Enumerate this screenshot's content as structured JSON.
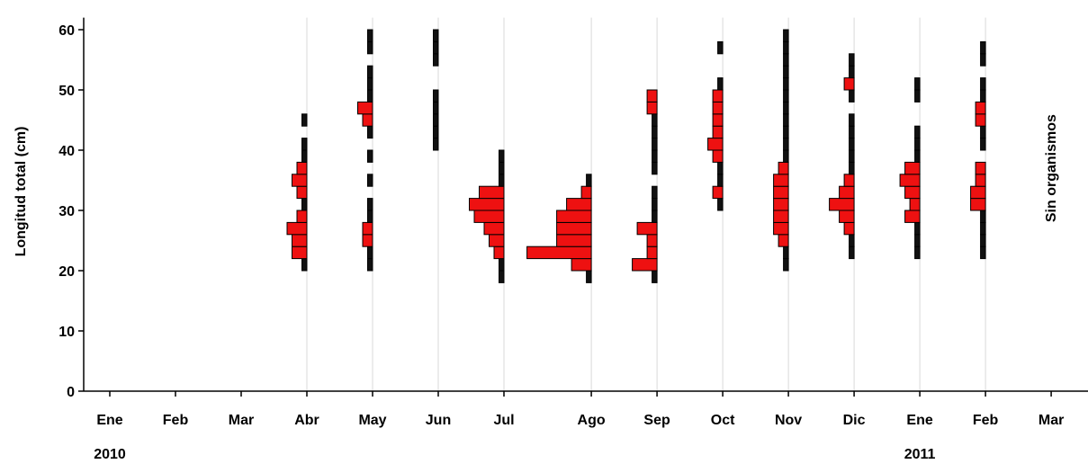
{
  "chart_data": {
    "type": "bar",
    "subtype": "monthly length-frequency histograms (horizontal bars)",
    "ylabel": "Longitud total (cm)",
    "ylim": [
      0,
      62
    ],
    "yticks": [
      0,
      10,
      20,
      30,
      40,
      50,
      60
    ],
    "bin_width_cm": 2,
    "colors": {
      "bar_fill": "#ee1111",
      "bar_stroke": "#000000",
      "gridline": "#d9d9d9"
    },
    "months": [
      {
        "label": "Ene",
        "x": 0
      },
      {
        "label": "Feb",
        "x": 1
      },
      {
        "label": "Mar",
        "x": 2
      },
      {
        "label": "Abr",
        "x": 3
      },
      {
        "label": "May",
        "x": 4
      },
      {
        "label": "Jun",
        "x": 5
      },
      {
        "label": "Jul",
        "x": 6
      },
      {
        "label": "Ago",
        "x": 7.33
      },
      {
        "label": "Sep",
        "x": 8.33
      },
      {
        "label": "Oct",
        "x": 9.33
      },
      {
        "label": "Nov",
        "x": 10.33
      },
      {
        "label": "Dic",
        "x": 11.33
      },
      {
        "label": "Ene",
        "x": 12.33
      },
      {
        "label": "Feb",
        "x": 13.33
      },
      {
        "label": "Mar",
        "x": 14.33
      }
    ],
    "years": [
      {
        "label": "2010",
        "x": 0
      },
      {
        "label": "2011",
        "x": 12.33
      }
    ],
    "annotation": {
      "text": "Sin organismos",
      "x": 14.33,
      "y": 37
    },
    "series": [
      {
        "month": "Abr",
        "x": 3,
        "bins": [
          [
            21,
            1
          ],
          [
            23,
            3
          ],
          [
            25,
            3
          ],
          [
            27,
            4
          ],
          [
            29,
            2
          ],
          [
            31,
            1
          ],
          [
            33,
            2
          ],
          [
            35,
            3
          ],
          [
            37,
            2
          ],
          [
            39,
            1
          ],
          [
            41,
            1
          ],
          [
            45,
            1
          ]
        ]
      },
      {
        "month": "May",
        "x": 4,
        "bins": [
          [
            21,
            1
          ],
          [
            23,
            1
          ],
          [
            25,
            2
          ],
          [
            27,
            2
          ],
          [
            29,
            1
          ],
          [
            31,
            1
          ],
          [
            35,
            1
          ],
          [
            39,
            1
          ],
          [
            43,
            1
          ],
          [
            45,
            2
          ],
          [
            47,
            3
          ],
          [
            49,
            1
          ],
          [
            51,
            1
          ],
          [
            53,
            1
          ],
          [
            57,
            1
          ],
          [
            59,
            1
          ]
        ]
      },
      {
        "month": "Jun",
        "x": 5,
        "bins": [
          [
            41,
            1
          ],
          [
            43,
            1
          ],
          [
            45,
            1
          ],
          [
            47,
            1
          ],
          [
            49,
            1
          ],
          [
            55,
            1
          ],
          [
            57,
            1
          ],
          [
            59,
            1
          ]
        ]
      },
      {
        "month": "Jul",
        "x": 6,
        "bins": [
          [
            19,
            1
          ],
          [
            21,
            1
          ],
          [
            23,
            2
          ],
          [
            25,
            3
          ],
          [
            27,
            4
          ],
          [
            29,
            6
          ],
          [
            31,
            7
          ],
          [
            33,
            5
          ],
          [
            35,
            1
          ],
          [
            37,
            1
          ],
          [
            39,
            1
          ]
        ]
      },
      {
        "month": "Ago",
        "x": 7.33,
        "bins": [
          [
            19,
            1
          ],
          [
            21,
            4
          ],
          [
            23,
            13
          ],
          [
            25,
            7
          ],
          [
            27,
            7
          ],
          [
            29,
            7
          ],
          [
            31,
            5
          ],
          [
            33,
            2
          ],
          [
            35,
            1
          ]
        ]
      },
      {
        "month": "Sep",
        "x": 8.33,
        "bins": [
          [
            19,
            1
          ],
          [
            21,
            5
          ],
          [
            23,
            2
          ],
          [
            25,
            2
          ],
          [
            27,
            4
          ],
          [
            29,
            1
          ],
          [
            31,
            1
          ],
          [
            33,
            1
          ],
          [
            37,
            1
          ],
          [
            39,
            1
          ],
          [
            41,
            1
          ],
          [
            43,
            1
          ],
          [
            45,
            1
          ],
          [
            47,
            2
          ],
          [
            49,
            2
          ]
        ]
      },
      {
        "month": "Oct",
        "x": 9.33,
        "bins": [
          [
            31,
            1
          ],
          [
            33,
            2
          ],
          [
            35,
            1
          ],
          [
            37,
            1
          ],
          [
            39,
            2
          ],
          [
            41,
            3
          ],
          [
            43,
            2
          ],
          [
            45,
            2
          ],
          [
            47,
            2
          ],
          [
            49,
            2
          ],
          [
            51,
            1
          ],
          [
            57,
            1
          ]
        ]
      },
      {
        "month": "Nov",
        "x": 10.33,
        "bins": [
          [
            21,
            1
          ],
          [
            23,
            1
          ],
          [
            25,
            2
          ],
          [
            27,
            3
          ],
          [
            29,
            3
          ],
          [
            31,
            3
          ],
          [
            33,
            3
          ],
          [
            35,
            3
          ],
          [
            37,
            2
          ],
          [
            39,
            1
          ],
          [
            41,
            1
          ],
          [
            43,
            1
          ],
          [
            45,
            1
          ],
          [
            47,
            1
          ],
          [
            49,
            1
          ],
          [
            51,
            1
          ],
          [
            53,
            1
          ],
          [
            55,
            1
          ],
          [
            57,
            1
          ],
          [
            59,
            1
          ]
        ]
      },
      {
        "month": "Dic",
        "x": 11.33,
        "bins": [
          [
            23,
            1
          ],
          [
            25,
            1
          ],
          [
            27,
            2
          ],
          [
            29,
            3
          ],
          [
            31,
            5
          ],
          [
            33,
            3
          ],
          [
            35,
            2
          ],
          [
            37,
            1
          ],
          [
            39,
            1
          ],
          [
            41,
            1
          ],
          [
            43,
            1
          ],
          [
            45,
            1
          ],
          [
            49,
            1
          ],
          [
            51,
            2
          ],
          [
            53,
            1
          ],
          [
            55,
            1
          ]
        ]
      },
      {
        "month": "Ene",
        "x": 12.33,
        "bins": [
          [
            23,
            1
          ],
          [
            25,
            1
          ],
          [
            27,
            1
          ],
          [
            29,
            3
          ],
          [
            31,
            2
          ],
          [
            33,
            3
          ],
          [
            35,
            4
          ],
          [
            37,
            3
          ],
          [
            39,
            1
          ],
          [
            41,
            1
          ],
          [
            43,
            1
          ],
          [
            49,
            1
          ],
          [
            51,
            1
          ]
        ]
      },
      {
        "month": "Feb",
        "x": 13.33,
        "bins": [
          [
            23,
            1
          ],
          [
            25,
            1
          ],
          [
            27,
            1
          ],
          [
            29,
            1
          ],
          [
            31,
            3
          ],
          [
            33,
            3
          ],
          [
            35,
            2
          ],
          [
            37,
            2
          ],
          [
            41,
            1
          ],
          [
            43,
            1
          ],
          [
            45,
            2
          ],
          [
            47,
            2
          ],
          [
            49,
            1
          ],
          [
            51,
            1
          ],
          [
            55,
            1
          ],
          [
            57,
            1
          ]
        ]
      }
    ]
  }
}
